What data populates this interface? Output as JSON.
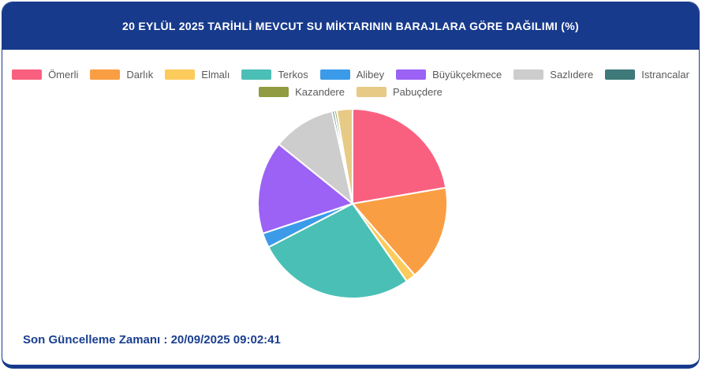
{
  "header": {
    "title": "20 EYLÜL 2025 TARİHLİ MEVCUT SU MİKTARININ BARAJLARA GÖRE DAĞILIMI (%)",
    "background_color": "#173A8C",
    "text_color": "#FFFFFF"
  },
  "legend": {
    "rows": [
      [
        "Ömerli",
        "Darlık",
        "Elmalı",
        "Terkos",
        "Alibey",
        "Büyükçekmece",
        "Sazlıdere",
        "Istrancalar"
      ],
      [
        "Kazandere",
        "Pabuçdere"
      ]
    ],
    "text_color": "#5A5A5A"
  },
  "chart_data": {
    "type": "pie",
    "title": "20 EYLÜL 2025 TARİHLİ MEVCUT SU MİKTARININ BARAJLARA GÖRE DAĞILIMI (%)",
    "unit": "%",
    "direction": "clockwise",
    "start_angle_deg": 0,
    "legend_position": "top",
    "slice_border_color": "#FFFFFF",
    "series": [
      {
        "name": "Ömerli",
        "value": 22.3,
        "color": "#F9607F"
      },
      {
        "name": "Darlık",
        "value": 16.3,
        "color": "#FA9E44"
      },
      {
        "name": "Elmalı",
        "value": 1.7,
        "color": "#FCCB5C"
      },
      {
        "name": "Terkos",
        "value": 27.1,
        "color": "#4ABFB5"
      },
      {
        "name": "Alibey",
        "value": 2.5,
        "color": "#3B9BE9"
      },
      {
        "name": "Büyükçekmece",
        "value": 15.9,
        "color": "#9B62F5"
      },
      {
        "name": "Sazlıdere",
        "value": 10.7,
        "color": "#CDCDCD"
      },
      {
        "name": "Istrancalar",
        "value": 0.4,
        "color": "#3E7A79"
      },
      {
        "name": "Kazandere",
        "value": 0.4,
        "color": "#919B41"
      },
      {
        "name": "Pabuçdere",
        "value": 2.7,
        "color": "#E7CA86"
      }
    ]
  },
  "footer": {
    "label": "Son Güncelleme Zamanı",
    "separator": " : ",
    "value": "20/09/2025 09:02:41",
    "text_color": "#1B3F90"
  },
  "card": {
    "border_color": "#173A8C",
    "background_color": "#FFFFFF"
  }
}
